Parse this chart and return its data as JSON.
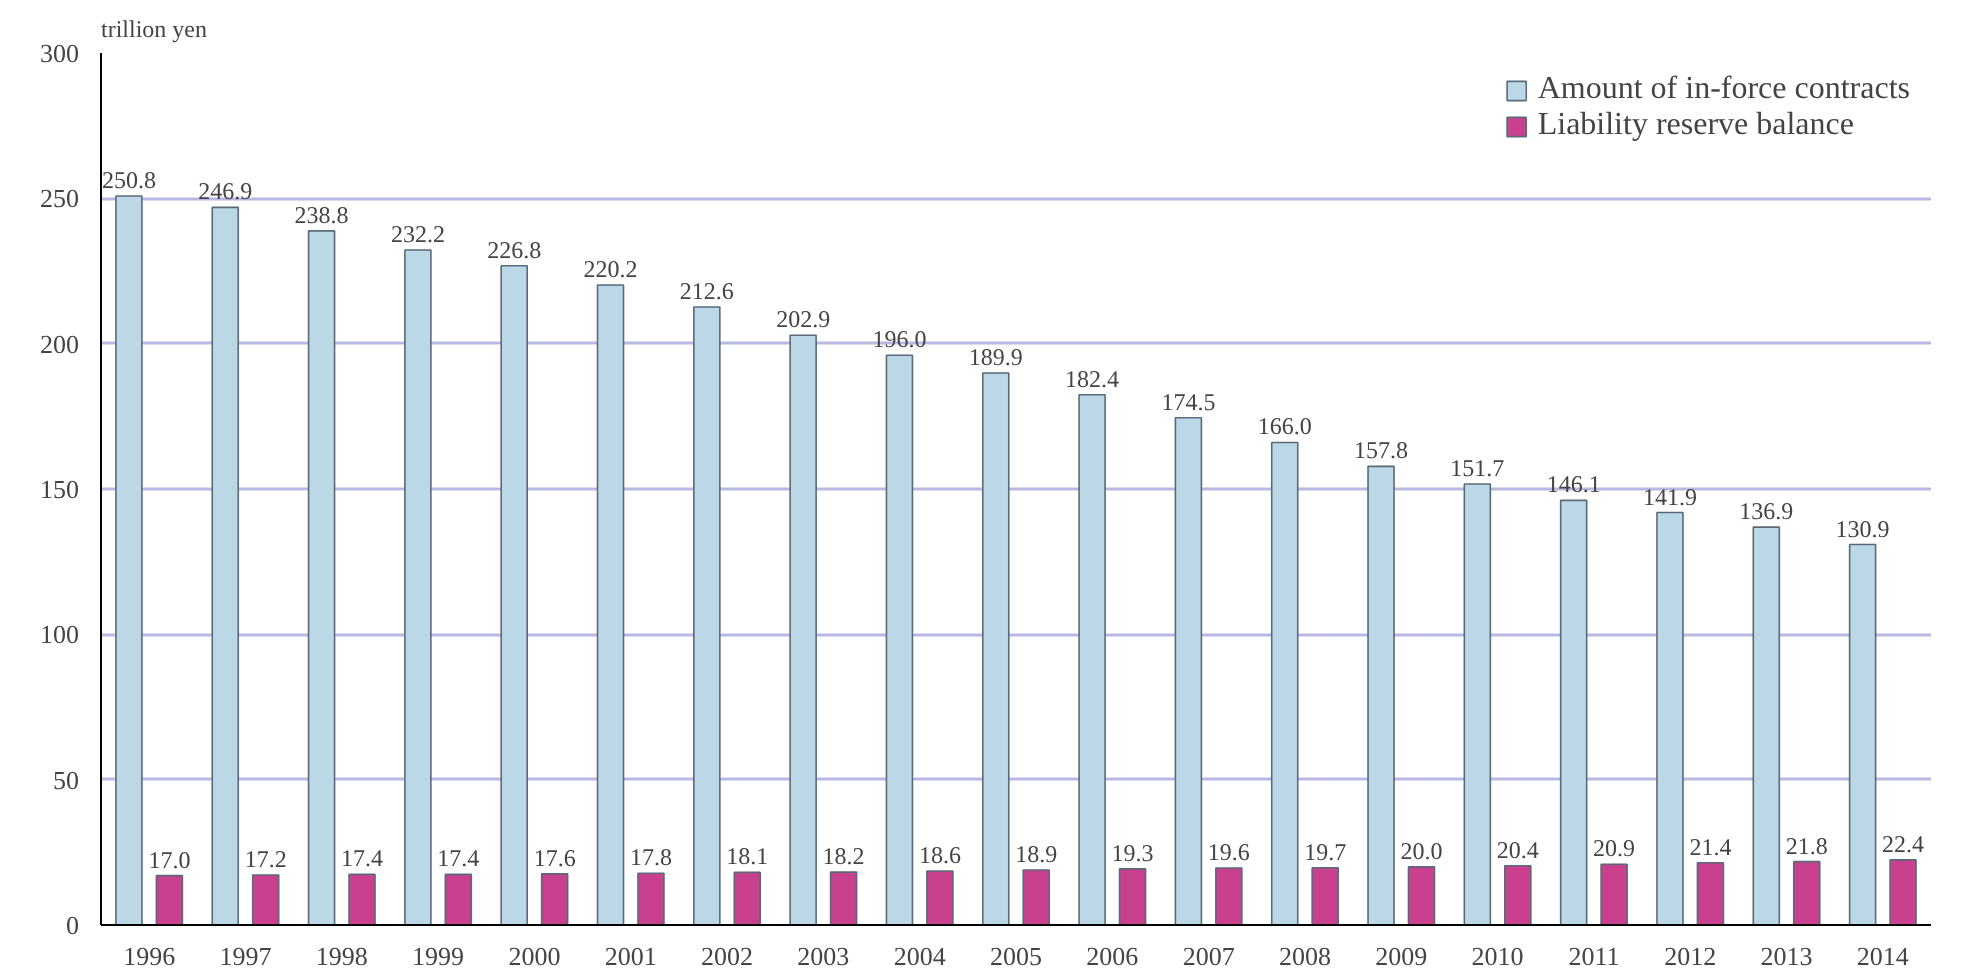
{
  "chart_data": {
    "type": "bar",
    "ylabel": "trillion yen",
    "categories": [
      "1996",
      "1997",
      "1998",
      "1999",
      "2000",
      "2001",
      "2002",
      "2003",
      "2004",
      "2005",
      "2006",
      "2007",
      "2008",
      "2009",
      "2010",
      "2011",
      "2012",
      "2013",
      "2014"
    ],
    "series": [
      {
        "name": "Amount of in-force contracts",
        "color": "#bcd8e6",
        "values": [
          250.8,
          246.9,
          238.8,
          232.2,
          226.8,
          220.2,
          212.6,
          202.9,
          196.0,
          189.9,
          182.4,
          174.5,
          166.0,
          157.8,
          151.7,
          146.1,
          141.9,
          136.9,
          130.9
        ],
        "value_labels": [
          "250.8",
          "246.9",
          "238.8",
          "232.2",
          "226.8",
          "220.2",
          "212.6",
          "202.9",
          "196.0",
          "189.9",
          "182.4",
          "174.5",
          "166.0",
          "157.8",
          "151.7",
          "146.1",
          "141.9",
          "136.9",
          "130.9"
        ]
      },
      {
        "name": "Liability reserve balance",
        "color": "#c8408e",
        "values": [
          17.0,
          17.2,
          17.4,
          17.4,
          17.6,
          17.8,
          18.1,
          18.2,
          18.6,
          18.9,
          19.3,
          19.6,
          19.7,
          20.0,
          20.4,
          20.9,
          21.4,
          21.8,
          22.4
        ],
        "value_labels": [
          "17.0",
          "17.2",
          "17.4",
          "17.4",
          "17.6",
          "17.8",
          "18.1",
          "18.2",
          "18.6",
          "18.9",
          "19.3",
          "19.6",
          "19.7",
          "20.0",
          "20.4",
          "20.9",
          "21.4",
          "21.8",
          "22.4"
        ]
      }
    ],
    "ylim": [
      0,
      300
    ],
    "yticks": [
      0,
      50,
      100,
      150,
      200,
      250,
      300
    ],
    "grid": "y",
    "legend": "top right"
  }
}
